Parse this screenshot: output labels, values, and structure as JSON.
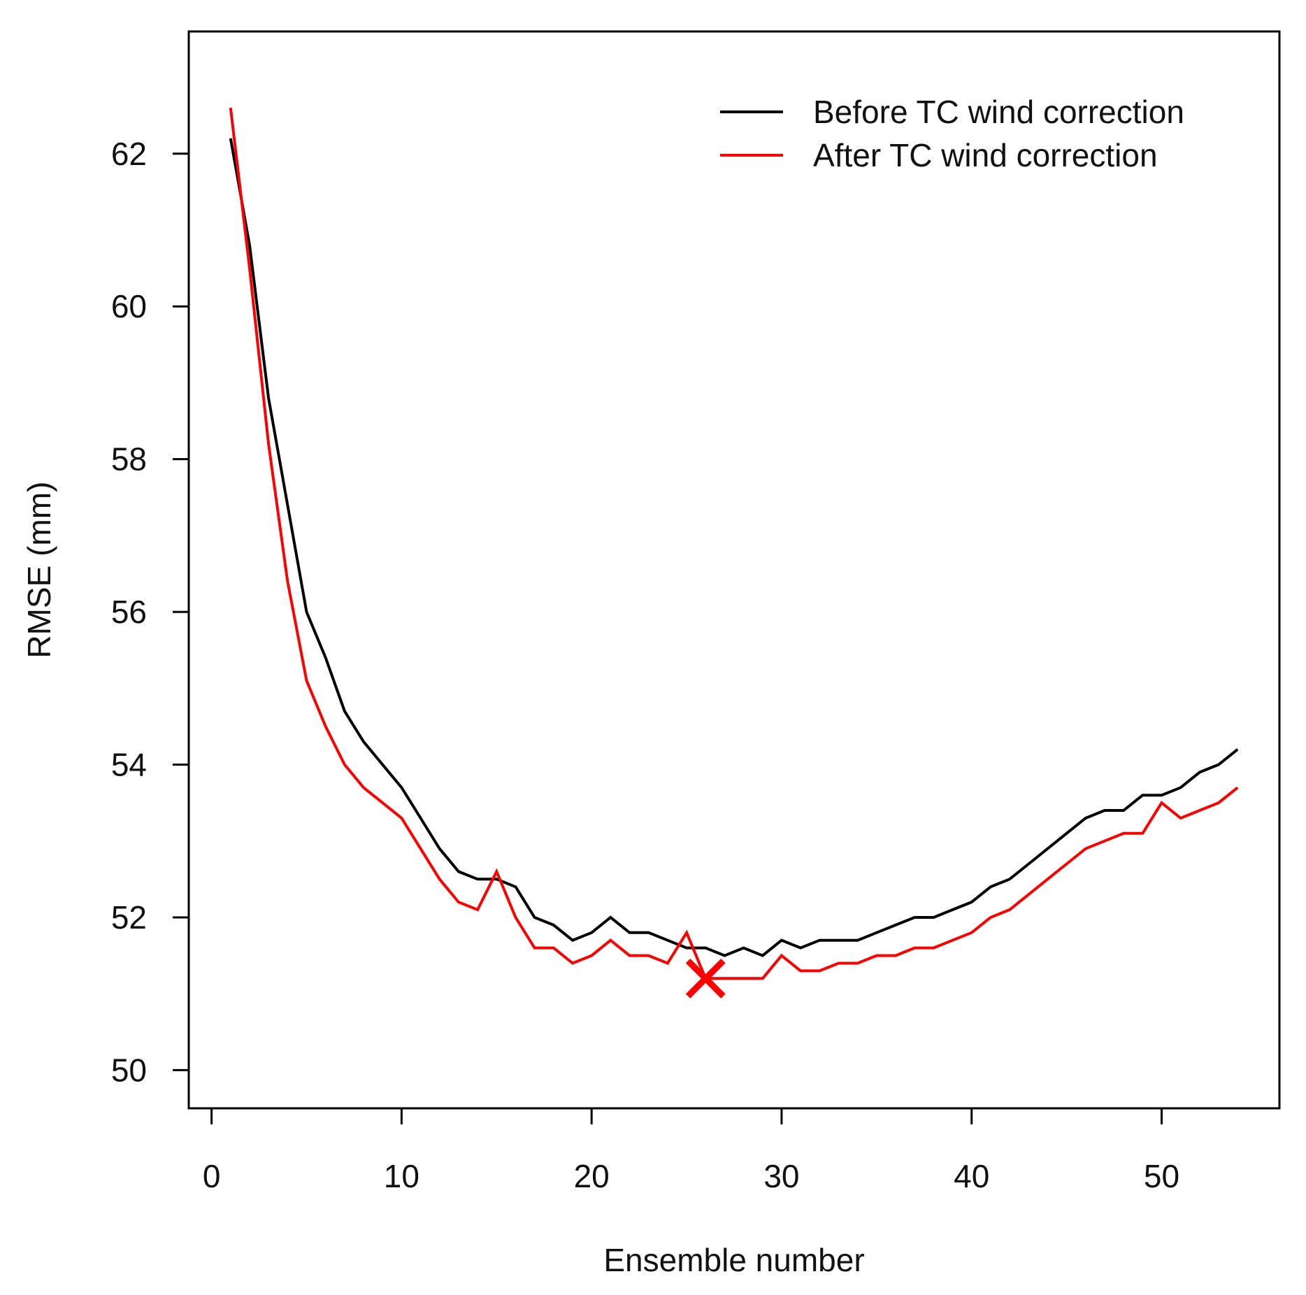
{
  "chart_data": {
    "type": "line",
    "title": "",
    "xlabel": "Ensemble number",
    "ylabel": "RMSE (mm)",
    "xlim": [
      -1.2,
      56.2
    ],
    "ylim": [
      49.5,
      63.6
    ],
    "xticks": [
      0,
      10,
      20,
      30,
      40,
      50
    ],
    "yticks": [
      50,
      52,
      54,
      56,
      58,
      60,
      62
    ],
    "grid": false,
    "legend_position": "top-right",
    "x": [
      1,
      2,
      3,
      4,
      5,
      6,
      7,
      8,
      9,
      10,
      11,
      12,
      13,
      14,
      15,
      16,
      17,
      18,
      19,
      20,
      21,
      22,
      23,
      24,
      25,
      26,
      27,
      28,
      29,
      30,
      31,
      32,
      33,
      34,
      35,
      36,
      37,
      38,
      39,
      40,
      41,
      42,
      43,
      44,
      45,
      46,
      47,
      48,
      49,
      50,
      51,
      52,
      53,
      54
    ],
    "series": [
      {
        "name": "Before TC wind correction",
        "color": "#000000",
        "values": [
          62.2,
          60.8,
          58.8,
          57.4,
          56.0,
          55.4,
          54.7,
          54.3,
          54.0,
          53.7,
          53.3,
          52.9,
          52.6,
          52.5,
          52.5,
          52.4,
          52.0,
          51.9,
          51.7,
          51.8,
          52.0,
          51.8,
          51.8,
          51.7,
          51.6,
          51.6,
          51.5,
          51.6,
          51.5,
          51.7,
          51.6,
          51.7,
          51.7,
          51.7,
          51.8,
          51.9,
          52.0,
          52.0,
          52.1,
          52.2,
          52.4,
          52.5,
          52.7,
          52.9,
          53.1,
          53.3,
          53.4,
          53.4,
          53.6,
          53.6,
          53.7,
          53.9,
          54.0,
          54.2
        ]
      },
      {
        "name": "After TC wind correction",
        "color": "#ff0000",
        "values": [
          62.6,
          60.5,
          58.2,
          56.4,
          55.1,
          54.5,
          54.0,
          53.7,
          53.5,
          53.3,
          52.9,
          52.5,
          52.2,
          52.1,
          52.6,
          52.0,
          51.6,
          51.6,
          51.4,
          51.5,
          51.7,
          51.5,
          51.5,
          51.4,
          51.8,
          51.2,
          51.2,
          51.2,
          51.2,
          51.5,
          51.3,
          51.3,
          51.4,
          51.4,
          51.5,
          51.5,
          51.6,
          51.6,
          51.7,
          51.8,
          52.0,
          52.1,
          52.3,
          52.5,
          52.7,
          52.9,
          53.0,
          53.1,
          53.1,
          53.5,
          53.3,
          53.4,
          53.5,
          53.7
        ]
      }
    ],
    "annotations": [
      {
        "type": "marker",
        "symbol": "x",
        "x": 26,
        "y": 51.2,
        "color": "#ff0000"
      }
    ]
  }
}
